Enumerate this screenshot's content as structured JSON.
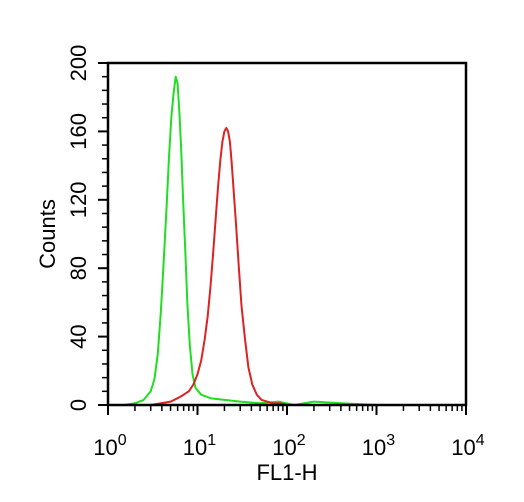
{
  "chart_data": {
    "type": "line",
    "xlabel": "FL1-H",
    "ylabel": "Counts",
    "x_scale": "log",
    "xlim": [
      1,
      10000
    ],
    "ylim": [
      0,
      200
    ],
    "grid": false,
    "x_tick_labels": [
      {
        "base": "10",
        "exp": "0"
      },
      {
        "base": "10",
        "exp": "1"
      },
      {
        "base": "10",
        "exp": "2"
      },
      {
        "base": "10",
        "exp": "3"
      },
      {
        "base": "10",
        "exp": "4"
      }
    ],
    "x_tick_values": [
      1,
      10,
      100,
      1000,
      10000
    ],
    "y_tick_labels": [
      "0",
      "40",
      "80",
      "120",
      "160",
      "200"
    ],
    "y_tick_values": [
      0,
      40,
      80,
      120,
      160,
      200
    ],
    "series": [
      {
        "color": "#22dd22",
        "x": [
          1,
          1.5,
          2,
          2.5,
          3,
          3.3,
          3.6,
          3.9,
          4.2,
          4.5,
          4.8,
          5.1,
          5.4,
          5.7,
          6.0,
          6.3,
          6.6,
          6.9,
          7.3,
          7.7,
          8.2,
          8.8,
          9.5,
          11,
          14,
          20,
          30,
          50,
          80,
          120,
          200,
          400,
          1000,
          10000
        ],
        "y": [
          0,
          0,
          1,
          3,
          8,
          15,
          30,
          55,
          85,
          115,
          145,
          168,
          182,
          192,
          188,
          170,
          148,
          120,
          90,
          60,
          35,
          18,
          10,
          6,
          4,
          3,
          2,
          1,
          2,
          0,
          2,
          1,
          0,
          0
        ]
      },
      {
        "color": "#dd2222",
        "x": [
          1,
          3,
          5,
          6,
          7,
          8,
          9,
          10,
          11,
          12,
          13,
          14,
          15,
          16,
          17,
          18,
          19,
          20,
          21,
          22,
          23,
          24,
          25,
          27,
          29,
          31,
          34,
          37,
          41,
          46,
          52,
          60,
          70,
          85,
          100,
          150,
          300,
          1000,
          10000
        ],
        "y": [
          0,
          0,
          2,
          4,
          6,
          8,
          12,
          18,
          26,
          38,
          52,
          70,
          90,
          110,
          128,
          143,
          154,
          160,
          162,
          160,
          154,
          143,
          130,
          105,
          80,
          58,
          38,
          22,
          12,
          6,
          3,
          2,
          1,
          1,
          0,
          0,
          0,
          0,
          0
        ]
      }
    ]
  }
}
